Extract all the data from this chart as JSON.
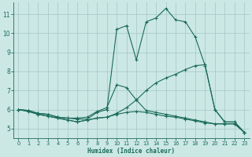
{
  "xlabel": "Humidex (Indice chaleur)",
  "background_color": "#cce8e4",
  "grid_color": "#aaccca",
  "line_color": "#1a6b5a",
  "xlim": [
    -0.5,
    23.5
  ],
  "ylim": [
    4.5,
    11.6
  ],
  "xticks": [
    0,
    1,
    2,
    3,
    4,
    5,
    6,
    7,
    8,
    9,
    10,
    11,
    12,
    13,
    14,
    15,
    16,
    17,
    18,
    19,
    20,
    21,
    22,
    23
  ],
  "yticks": [
    5,
    6,
    7,
    8,
    9,
    10,
    11
  ],
  "lines": [
    {
      "x": [
        0,
        1,
        2,
        3,
        4,
        5,
        6,
        7,
        8,
        9,
        10,
        11,
        12,
        13,
        14,
        15,
        16,
        17,
        18,
        19,
        20,
        21,
        22,
        23
      ],
      "y": [
        6.0,
        5.95,
        5.8,
        5.75,
        5.6,
        5.55,
        5.5,
        5.5,
        5.85,
        6.0,
        10.2,
        10.4,
        8.6,
        10.6,
        10.8,
        11.3,
        10.7,
        10.6,
        9.8,
        8.3,
        6.0,
        5.35,
        5.35,
        4.8
      ]
    },
    {
      "x": [
        0,
        1,
        2,
        3,
        4,
        5,
        6,
        7,
        8,
        9,
        10,
        11,
        12,
        13,
        14,
        15,
        16,
        17,
        18,
        19,
        20,
        21,
        22,
        23
      ],
      "y": [
        6.0,
        5.95,
        5.8,
        5.75,
        5.6,
        5.55,
        5.55,
        5.6,
        5.9,
        6.1,
        7.3,
        7.15,
        6.5,
        7.0,
        7.4,
        7.65,
        7.85,
        8.1,
        8.3,
        8.35,
        6.0,
        5.35,
        5.35,
        4.8
      ]
    },
    {
      "x": [
        0,
        1,
        2,
        3,
        4,
        5,
        6,
        7,
        8,
        9,
        10,
        11,
        12,
        13,
        14,
        15,
        16,
        17,
        18,
        19,
        20,
        21,
        22,
        23
      ],
      "y": [
        6.0,
        5.9,
        5.75,
        5.65,
        5.55,
        5.45,
        5.35,
        5.45,
        5.55,
        5.6,
        5.8,
        6.1,
        6.5,
        5.95,
        5.85,
        5.75,
        5.65,
        5.55,
        5.45,
        5.35,
        5.25,
        5.25,
        5.25,
        4.8
      ]
    },
    {
      "x": [
        0,
        1,
        2,
        3,
        4,
        5,
        6,
        7,
        8,
        9,
        10,
        11,
        12,
        13,
        14,
        15,
        16,
        17,
        18,
        19,
        20,
        21,
        22,
        23
      ],
      "y": [
        6.0,
        5.9,
        5.75,
        5.65,
        5.55,
        5.45,
        5.35,
        5.45,
        5.55,
        5.6,
        5.75,
        5.85,
        5.9,
        5.85,
        5.75,
        5.65,
        5.6,
        5.5,
        5.4,
        5.3,
        5.25,
        5.25,
        5.25,
        4.8
      ]
    }
  ]
}
